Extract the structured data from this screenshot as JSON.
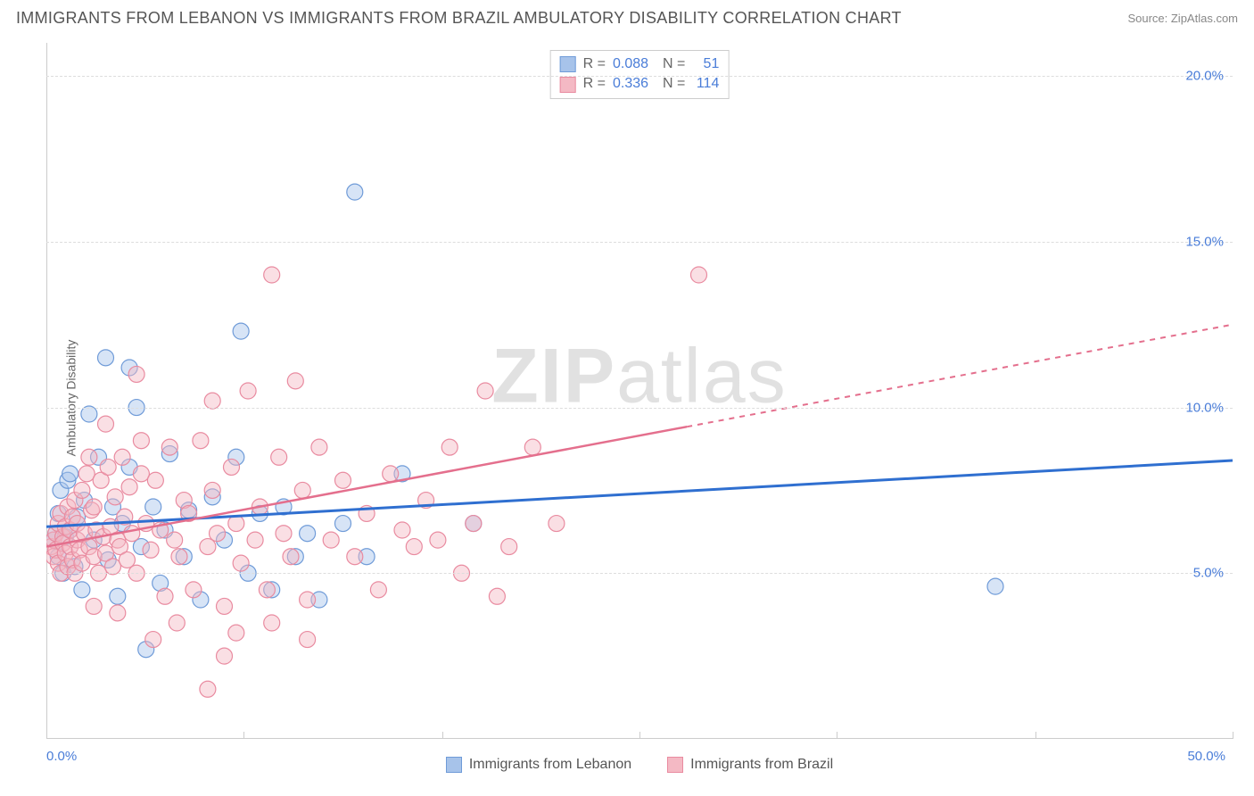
{
  "title": "IMMIGRANTS FROM LEBANON VS IMMIGRANTS FROM BRAZIL AMBULATORY DISABILITY CORRELATION CHART",
  "source": "Source: ZipAtlas.com",
  "y_label": "Ambulatory Disability",
  "watermark_bold": "ZIP",
  "watermark_light": "atlas",
  "chart": {
    "type": "scatter",
    "xlim": [
      0,
      50
    ],
    "ylim": [
      0,
      21
    ],
    "y_ticks": [
      5.0,
      10.0,
      15.0,
      20.0
    ],
    "y_tick_labels": [
      "5.0%",
      "10.0%",
      "15.0%",
      "20.0%"
    ],
    "x_min_label": "0.0%",
    "x_max_label": "50.0%",
    "x_ticks": [
      0,
      8.3,
      16.7,
      25,
      33.3,
      41.7,
      50
    ],
    "grid_color": "#dddddd",
    "background": "#ffffff",
    "axis_color": "#cccccc",
    "marker_radius": 9,
    "marker_opacity": 0.45,
    "series": [
      {
        "name": "Immigrants from Lebanon",
        "color_fill": "#a7c3ea",
        "color_stroke": "#6f9bd8",
        "R": "0.088",
        "N": "51",
        "trend": {
          "x1": 0,
          "y1": 6.4,
          "x2": 50,
          "y2": 8.4,
          "solid_until_x": 50,
          "color": "#2f6fd0",
          "width": 3
        },
        "points": [
          [
            0.3,
            6.0
          ],
          [
            0.4,
            6.2
          ],
          [
            0.5,
            5.5
          ],
          [
            0.5,
            6.8
          ],
          [
            0.6,
            7.5
          ],
          [
            0.7,
            5.0
          ],
          [
            0.8,
            6.1
          ],
          [
            0.9,
            7.8
          ],
          [
            1.0,
            6.3
          ],
          [
            1.0,
            8.0
          ],
          [
            1.2,
            5.2
          ],
          [
            1.3,
            6.7
          ],
          [
            1.5,
            4.5
          ],
          [
            1.6,
            7.2
          ],
          [
            1.8,
            9.8
          ],
          [
            2.0,
            6.0
          ],
          [
            2.2,
            8.5
          ],
          [
            2.5,
            11.5
          ],
          [
            2.6,
            5.4
          ],
          [
            2.8,
            7.0
          ],
          [
            3.0,
            4.3
          ],
          [
            3.2,
            6.5
          ],
          [
            3.5,
            8.2
          ],
          [
            3.8,
            10.0
          ],
          [
            4.0,
            5.8
          ],
          [
            4.2,
            2.7
          ],
          [
            4.5,
            7.0
          ],
          [
            4.8,
            4.7
          ],
          [
            5.0,
            6.3
          ],
          [
            5.2,
            8.6
          ],
          [
            5.8,
            5.5
          ],
          [
            6.0,
            6.9
          ],
          [
            6.5,
            4.2
          ],
          [
            7.0,
            7.3
          ],
          [
            7.5,
            6.0
          ],
          [
            8.0,
            8.5
          ],
          [
            8.2,
            12.3
          ],
          [
            8.5,
            5.0
          ],
          [
            9.0,
            6.8
          ],
          [
            9.5,
            4.5
          ],
          [
            10.0,
            7.0
          ],
          [
            10.5,
            5.5
          ],
          [
            11.0,
            6.2
          ],
          [
            11.5,
            4.2
          ],
          [
            12.5,
            6.5
          ],
          [
            13.0,
            16.5
          ],
          [
            13.5,
            5.5
          ],
          [
            15.0,
            8.0
          ],
          [
            18.0,
            6.5
          ],
          [
            40.0,
            4.6
          ],
          [
            3.5,
            11.2
          ]
        ]
      },
      {
        "name": "Immigrants from Brazil",
        "color_fill": "#f4b9c4",
        "color_stroke": "#e98ba0",
        "R": "0.336",
        "N": "114",
        "trend": {
          "x1": 0,
          "y1": 5.8,
          "x2": 50,
          "y2": 12.5,
          "solid_until_x": 27,
          "color": "#e46f8d",
          "width": 2.5
        },
        "points": [
          [
            0.2,
            5.8
          ],
          [
            0.3,
            6.0
          ],
          [
            0.3,
            5.5
          ],
          [
            0.4,
            6.2
          ],
          [
            0.4,
            5.7
          ],
          [
            0.5,
            6.5
          ],
          [
            0.5,
            5.3
          ],
          [
            0.6,
            6.8
          ],
          [
            0.6,
            5.0
          ],
          [
            0.7,
            6.1
          ],
          [
            0.7,
            5.9
          ],
          [
            0.8,
            6.4
          ],
          [
            0.8,
            5.6
          ],
          [
            0.9,
            7.0
          ],
          [
            0.9,
            5.2
          ],
          [
            1.0,
            6.3
          ],
          [
            1.0,
            5.8
          ],
          [
            1.1,
            6.7
          ],
          [
            1.1,
            5.4
          ],
          [
            1.2,
            7.2
          ],
          [
            1.2,
            5.0
          ],
          [
            1.3,
            6.0
          ],
          [
            1.3,
            6.5
          ],
          [
            1.4,
            5.7
          ],
          [
            1.5,
            7.5
          ],
          [
            1.5,
            5.3
          ],
          [
            1.6,
            6.2
          ],
          [
            1.7,
            8.0
          ],
          [
            1.8,
            5.8
          ],
          [
            1.9,
            6.9
          ],
          [
            2.0,
            5.5
          ],
          [
            2.0,
            7.0
          ],
          [
            2.1,
            6.3
          ],
          [
            2.2,
            5.0
          ],
          [
            2.3,
            7.8
          ],
          [
            2.4,
            6.1
          ],
          [
            2.5,
            5.6
          ],
          [
            2.6,
            8.2
          ],
          [
            2.7,
            6.4
          ],
          [
            2.8,
            5.2
          ],
          [
            2.9,
            7.3
          ],
          [
            3.0,
            6.0
          ],
          [
            3.1,
            5.8
          ],
          [
            3.2,
            8.5
          ],
          [
            3.3,
            6.7
          ],
          [
            3.4,
            5.4
          ],
          [
            3.5,
            7.6
          ],
          [
            3.6,
            6.2
          ],
          [
            3.8,
            5.0
          ],
          [
            4.0,
            8.0
          ],
          [
            4.2,
            6.5
          ],
          [
            4.4,
            5.7
          ],
          [
            4.6,
            7.8
          ],
          [
            4.8,
            6.3
          ],
          [
            5.0,
            4.3
          ],
          [
            5.2,
            8.8
          ],
          [
            5.4,
            6.0
          ],
          [
            5.6,
            5.5
          ],
          [
            5.8,
            7.2
          ],
          [
            6.0,
            6.8
          ],
          [
            6.2,
            4.5
          ],
          [
            6.5,
            9.0
          ],
          [
            6.8,
            5.8
          ],
          [
            7.0,
            7.5
          ],
          [
            7.2,
            6.2
          ],
          [
            7.5,
            4.0
          ],
          [
            7.8,
            8.2
          ],
          [
            8.0,
            6.5
          ],
          [
            8.2,
            5.3
          ],
          [
            8.5,
            10.5
          ],
          [
            8.8,
            6.0
          ],
          [
            9.0,
            7.0
          ],
          [
            9.3,
            4.5
          ],
          [
            9.5,
            14.0
          ],
          [
            9.8,
            8.5
          ],
          [
            10.0,
            6.2
          ],
          [
            10.3,
            5.5
          ],
          [
            10.5,
            10.8
          ],
          [
            10.8,
            7.5
          ],
          [
            11.0,
            4.2
          ],
          [
            11.5,
            8.8
          ],
          [
            12.0,
            6.0
          ],
          [
            12.5,
            7.8
          ],
          [
            13.0,
            5.5
          ],
          [
            13.5,
            6.8
          ],
          [
            14.0,
            4.5
          ],
          [
            14.5,
            8.0
          ],
          [
            15.0,
            6.3
          ],
          [
            15.5,
            5.8
          ],
          [
            16.0,
            7.2
          ],
          [
            16.5,
            6.0
          ],
          [
            17.0,
            8.8
          ],
          [
            17.5,
            5.0
          ],
          [
            18.0,
            6.5
          ],
          [
            18.5,
            10.5
          ],
          [
            19.0,
            4.3
          ],
          [
            6.8,
            1.5
          ],
          [
            4.5,
            3.0
          ],
          [
            5.5,
            3.5
          ],
          [
            3.0,
            3.8
          ],
          [
            2.0,
            4.0
          ],
          [
            8.0,
            3.2
          ],
          [
            9.5,
            3.5
          ],
          [
            11.0,
            3.0
          ],
          [
            7.5,
            2.5
          ],
          [
            27.5,
            14.0
          ],
          [
            3.8,
            11.0
          ],
          [
            7.0,
            10.2
          ],
          [
            2.5,
            9.5
          ],
          [
            4.0,
            9.0
          ],
          [
            1.8,
            8.5
          ],
          [
            19.5,
            5.8
          ],
          [
            20.5,
            8.8
          ],
          [
            21.5,
            6.5
          ]
        ]
      }
    ]
  },
  "stats_labels": {
    "R": "R =",
    "N": "N ="
  },
  "legend_items": [
    {
      "label": "Immigrants from Lebanon",
      "fill": "#a7c3ea",
      "stroke": "#6f9bd8"
    },
    {
      "label": "Immigrants from Brazil",
      "fill": "#f4b9c4",
      "stroke": "#e98ba0"
    }
  ]
}
